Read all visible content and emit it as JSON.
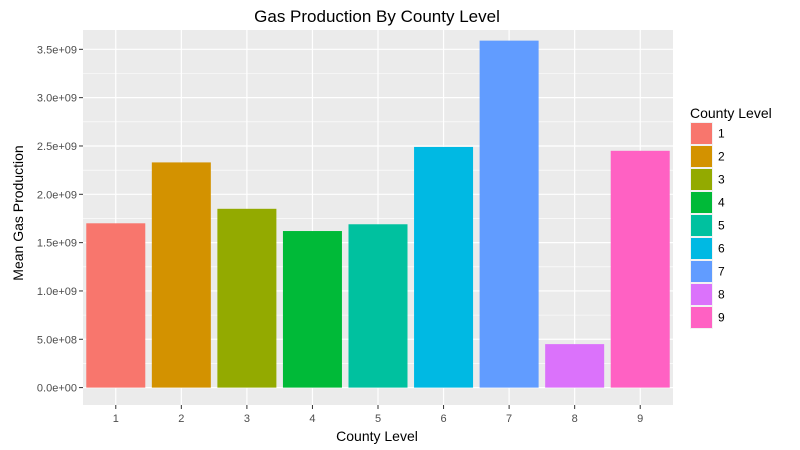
{
  "chart_data": {
    "type": "bar",
    "title": "Gas Production By County Level",
    "xlabel": "County Level",
    "ylabel": "Mean Gas Production",
    "categories": [
      "1",
      "2",
      "3",
      "4",
      "5",
      "6",
      "7",
      "8",
      "9"
    ],
    "values": [
      1700000000,
      2330000000,
      1850000000,
      1620000000,
      1690000000,
      2490000000,
      3590000000,
      450000000,
      2450000000
    ],
    "colors": [
      "#F8766D",
      "#D39200",
      "#93AA00",
      "#00BA38",
      "#00C19F",
      "#00B9E3",
      "#619CFF",
      "#DB72FB",
      "#FF61C3"
    ],
    "ylim": [
      -180000000,
      3700000000
    ],
    "yticks": [
      0,
      500000000,
      1000000000,
      1500000000,
      2000000000,
      2500000000,
      3000000000,
      3500000000
    ],
    "ytick_labels": [
      "0.0e+00",
      "5.0e+08",
      "1.0e+09",
      "1.5e+09",
      "2.0e+09",
      "2.5e+09",
      "3.0e+09",
      "3.5e+09"
    ],
    "grid": true,
    "panel_background": "#EBEBEB",
    "legend": {
      "title": "County Level",
      "placement": "right",
      "entries": [
        "1",
        "2",
        "3",
        "4",
        "5",
        "6",
        "7",
        "8",
        "9"
      ]
    }
  }
}
